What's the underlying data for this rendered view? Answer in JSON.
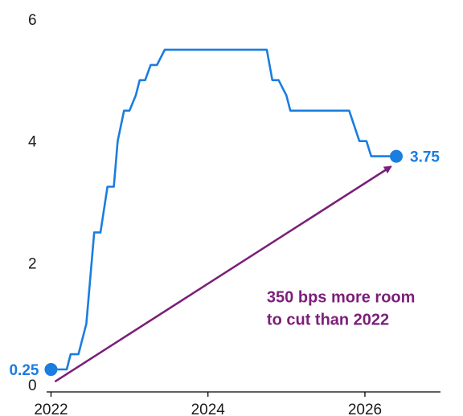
{
  "chart_data": {
    "type": "line",
    "x_tick_labels": [
      "2022",
      "2024",
      "2026"
    ],
    "x_ticks": [
      2022,
      2024,
      2026
    ],
    "y_tick_labels": [
      "0",
      "2",
      "4",
      "6"
    ],
    "y_ticks": [
      0,
      2,
      4,
      6
    ],
    "xlim": [
      2021.35,
      2027.25
    ],
    "ylim": [
      0,
      6
    ],
    "grid": false,
    "series": [
      {
        "color": "#1a7de0",
        "x": [
          2022.0,
          2022.2,
          2022.25,
          2022.35,
          2022.45,
          2022.55,
          2022.63,
          2022.72,
          2022.8,
          2022.85,
          2022.93,
          2023.0,
          2023.08,
          2023.13,
          2023.2,
          2023.27,
          2023.35,
          2023.45,
          2023.52,
          2023.6,
          2023.7,
          2024.0,
          2024.3,
          2024.55,
          2024.75,
          2024.82,
          2024.9,
          2025.0,
          2025.05,
          2025.15,
          2025.5,
          2025.8,
          2025.93,
          2026.02,
          2026.08,
          2026.2,
          2026.4
        ],
        "y": [
          0.25,
          0.25,
          0.5,
          0.5,
          1.0,
          2.5,
          2.5,
          3.25,
          3.25,
          4.0,
          4.5,
          4.5,
          4.75,
          5.0,
          5.0,
          5.25,
          5.25,
          5.5,
          5.5,
          5.5,
          5.5,
          5.5,
          5.5,
          5.5,
          5.5,
          5.0,
          5.0,
          4.75,
          4.5,
          4.5,
          4.5,
          4.5,
          4.0,
          4.0,
          3.75,
          3.75,
          3.75
        ]
      }
    ],
    "start_point": {
      "x": 2022.0,
      "y": 0.25,
      "label": "0.25"
    },
    "end_point": {
      "x": 2026.4,
      "y": 3.75,
      "label": "3.75"
    },
    "arrow": {
      "color": "#7b1f7a",
      "x": [
        2022.05,
        2026.33
      ],
      "y": [
        0.05,
        3.58
      ]
    },
    "annotation": {
      "lines": [
        "350 bps more room",
        "to cut than 2022"
      ],
      "color": "#7b1f7a",
      "x": 2024.75,
      "y": [
        1.35,
        0.98
      ]
    }
  }
}
